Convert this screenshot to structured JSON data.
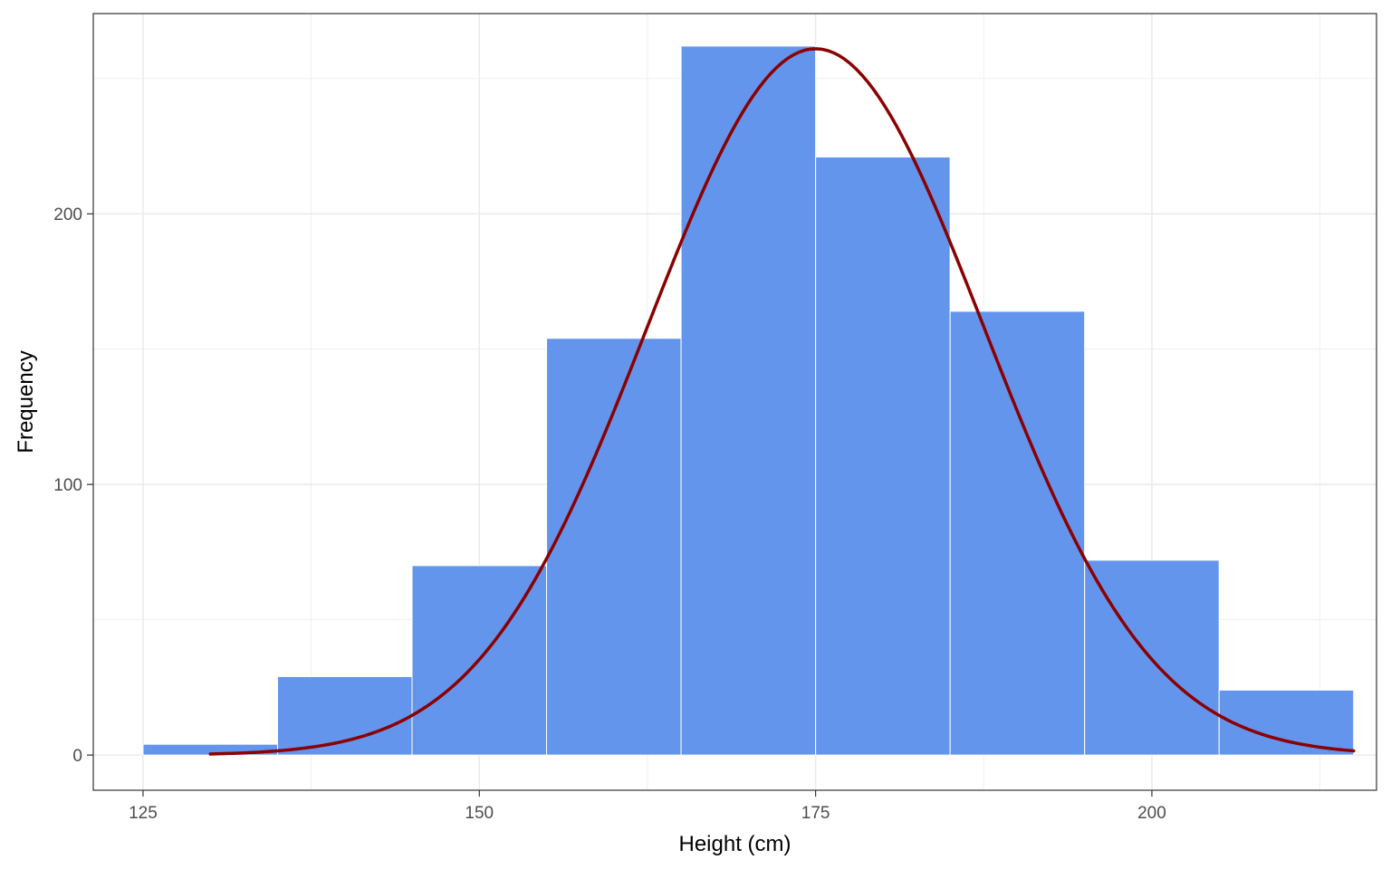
{
  "chart_data": {
    "type": "bar",
    "subtype": "histogram",
    "title": "",
    "xlabel": "Height (cm)",
    "ylabel": "Frequency",
    "xlim": [
      121.3,
      216.7
    ],
    "ylim": [
      -13,
      274
    ],
    "x_ticks": [
      125,
      150,
      175,
      200
    ],
    "y_ticks": [
      0,
      100,
      200
    ],
    "x_minor_ticks": [
      137.5,
      162.5,
      187.5,
      212.5
    ],
    "y_minor_ticks": [
      50,
      150,
      250
    ],
    "bins": [
      {
        "start": 125,
        "end": 135,
        "count": 4
      },
      {
        "start": 135,
        "end": 145,
        "count": 29
      },
      {
        "start": 145,
        "end": 155,
        "count": 70
      },
      {
        "start": 155,
        "end": 165,
        "count": 154
      },
      {
        "start": 165,
        "end": 175,
        "count": 262
      },
      {
        "start": 175,
        "end": 185,
        "count": 221
      },
      {
        "start": 185,
        "end": 195,
        "count": 164
      },
      {
        "start": 195,
        "end": 205,
        "count": 72
      },
      {
        "start": 205,
        "end": 215,
        "count": 24
      }
    ],
    "curve": {
      "type": "normal-density",
      "mean": 175,
      "sd": 12.5,
      "peak": 261,
      "x_range": [
        130,
        215
      ]
    },
    "grid": true,
    "legend": "none",
    "colors": {
      "bar_fill": "#6495ed",
      "bar_edge": "#ffffff",
      "curve": "#8b0000",
      "grid": "#ebebeb",
      "panel_border": "#333333",
      "tick_label": "#4d4d4d",
      "axis_title": "#000000"
    }
  }
}
